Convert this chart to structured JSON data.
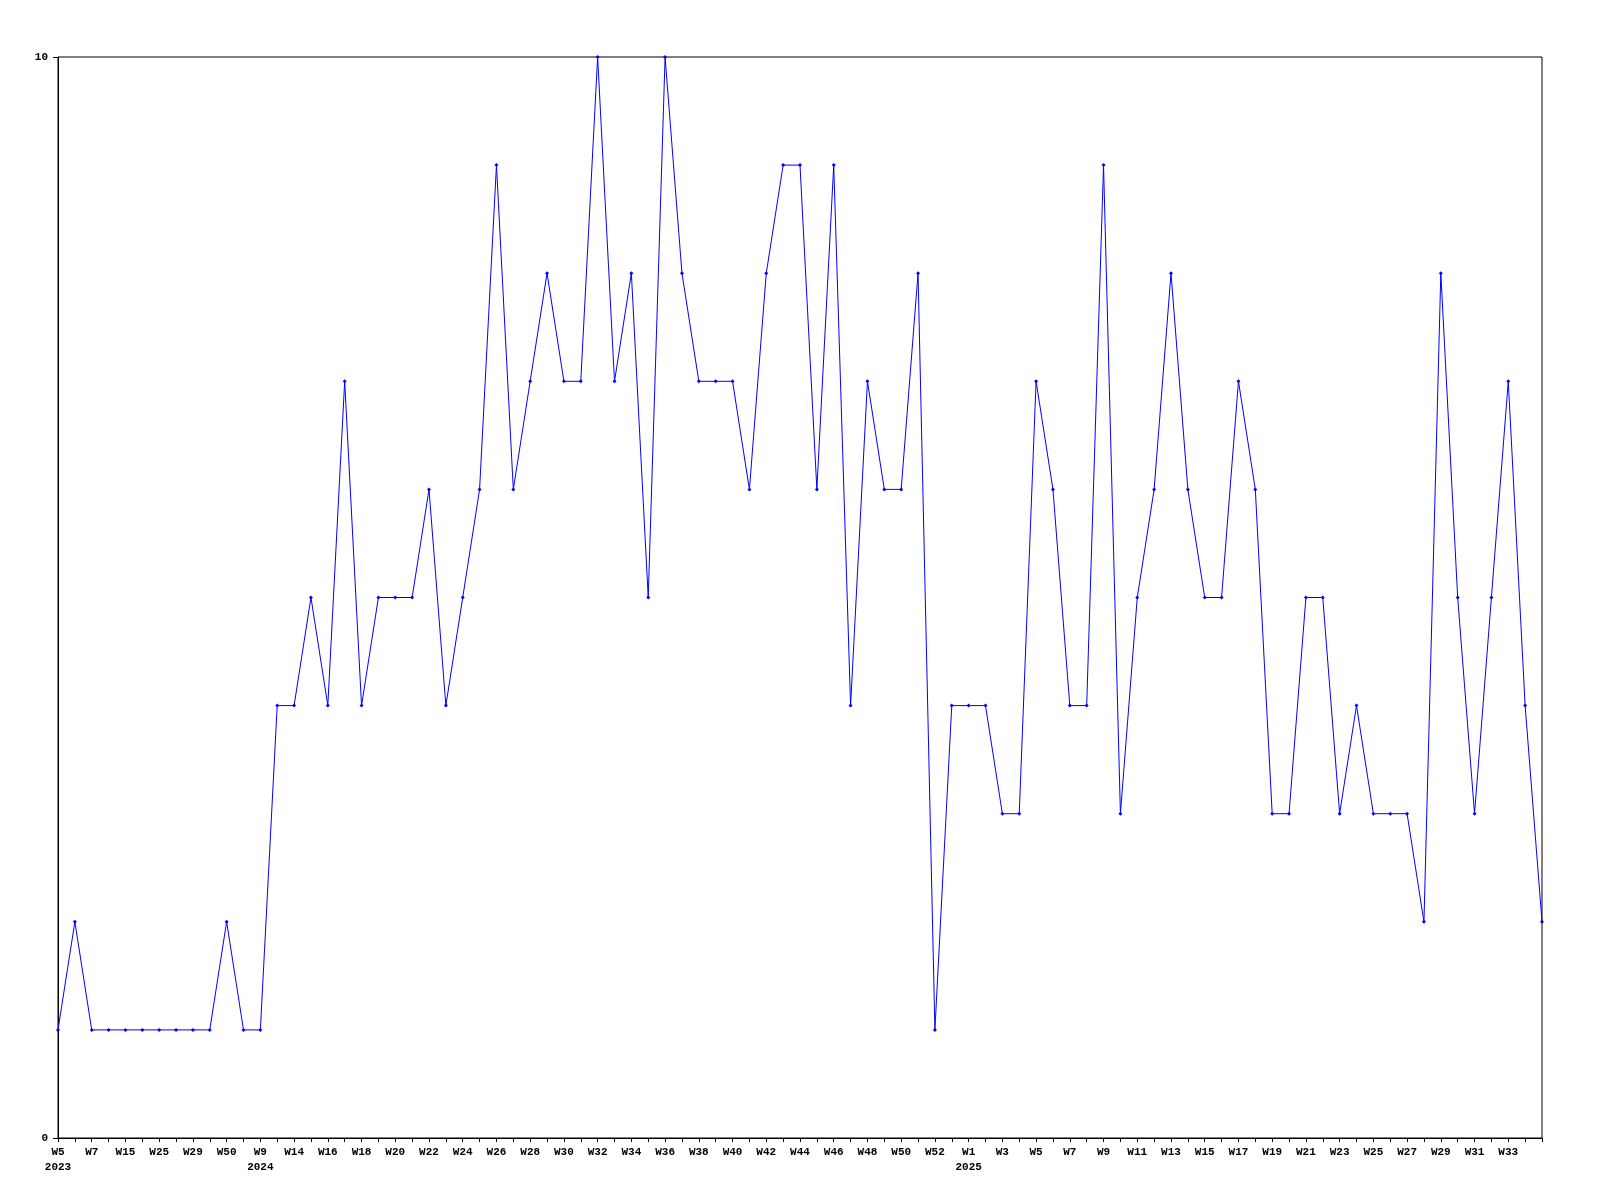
{
  "chart_data": {
    "type": "line",
    "categories": [
      "W5\n2023",
      null,
      "W7",
      null,
      "W15",
      null,
      "W25",
      null,
      "W29",
      null,
      "W50",
      null,
      "W9\n2024",
      null,
      "W14",
      null,
      "W16",
      null,
      "W18",
      null,
      "W20",
      null,
      "W22",
      null,
      "W24",
      null,
      "W26",
      null,
      "W28",
      null,
      "W30",
      null,
      "W32",
      null,
      "W34",
      null,
      "W36",
      null,
      "W38",
      null,
      "W40",
      null,
      "W42",
      null,
      "W44",
      null,
      "W46",
      null,
      "W48",
      null,
      "W50",
      null,
      "W52",
      null,
      "W1\n2025",
      null,
      "W3",
      null,
      "W5",
      null,
      "W7",
      null,
      "W9",
      null,
      "W11",
      null,
      "W13",
      null,
      "W15",
      null,
      "W17",
      null,
      "W19",
      null,
      "W21",
      null,
      "W23",
      null,
      "W25",
      null,
      "W27",
      null,
      "W29",
      null,
      "W31",
      null,
      "W33",
      null,
      null
    ],
    "series": [
      {
        "color": "#0000ff",
        "values": [
          1,
          2,
          1,
          1,
          1,
          1,
          1,
          1,
          1,
          1,
          2,
          1,
          1,
          4,
          4,
          5,
          4,
          7,
          4,
          5,
          5,
          5,
          6,
          4,
          5,
          6,
          9,
          6,
          7,
          8,
          7,
          7,
          10,
          7,
          8,
          5,
          10,
          8,
          7,
          7,
          7,
          6,
          8,
          9,
          9,
          6,
          9,
          4,
          7,
          6,
          6,
          8,
          1,
          4,
          4,
          4,
          3,
          3,
          7,
          6,
          4,
          4,
          9,
          3,
          5,
          6,
          8,
          6,
          5,
          5,
          7,
          6,
          3,
          3,
          5,
          5,
          3,
          4,
          3,
          3,
          3,
          2,
          8,
          5,
          3,
          5,
          7,
          4,
          2
        ]
      }
    ],
    "ylim": [
      0,
      10
    ],
    "yticks": [
      0,
      10
    ],
    "grid": false,
    "marker": "diamond",
    "line_style": "solid"
  }
}
